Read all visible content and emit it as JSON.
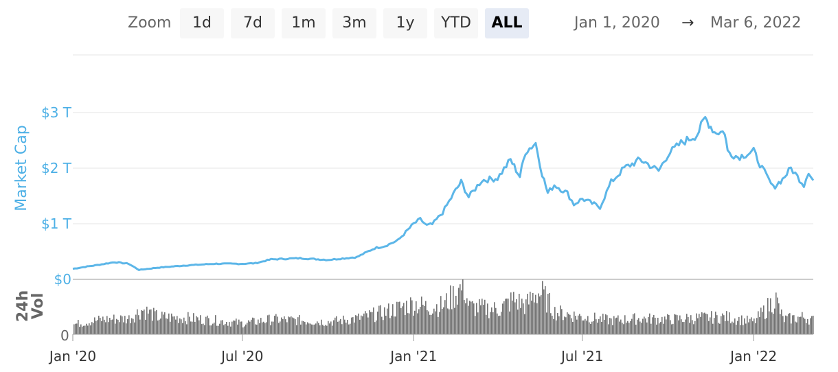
{
  "toolbar": {
    "zoom_label": "Zoom",
    "buttons": [
      "1d",
      "7d",
      "1m",
      "3m",
      "1y",
      "YTD",
      "ALL"
    ],
    "active_button": "ALL",
    "range_from": "Jan 1, 2020",
    "range_arrow": "→",
    "range_to": "Mar 6, 2022"
  },
  "colors": {
    "line": "#5cb6e8",
    "volume": "#737373",
    "grid": "#e6e6e6",
    "axis_label": "#4db0e6"
  },
  "chart_data": [
    {
      "type": "line",
      "ylabel": "Market Cap",
      "yticks": [
        "$0",
        "$1 T",
        "$2 T",
        "$3 T"
      ],
      "ylim": [
        0,
        3.25
      ],
      "grid": true,
      "unit": "trillion USD",
      "x": [
        "2020-01-01",
        "2020-02-01",
        "2020-02-15",
        "2020-03-01",
        "2020-03-12",
        "2020-04-01",
        "2020-05-01",
        "2020-06-01",
        "2020-07-01",
        "2020-07-15",
        "2020-08-01",
        "2020-09-01",
        "2020-10-01",
        "2020-11-01",
        "2020-11-20",
        "2020-12-01",
        "2020-12-15",
        "2021-01-01",
        "2021-01-08",
        "2021-01-15",
        "2021-01-21",
        "2021-02-01",
        "2021-02-15",
        "2021-02-21",
        "2021-03-01",
        "2021-03-15",
        "2021-04-01",
        "2021-04-15",
        "2021-04-25",
        "2021-05-01",
        "2021-05-12",
        "2021-05-19",
        "2021-05-25",
        "2021-06-01",
        "2021-06-15",
        "2021-06-22",
        "2021-07-01",
        "2021-07-20",
        "2021-08-01",
        "2021-08-15",
        "2021-09-01",
        "2021-09-07",
        "2021-09-21",
        "2021-10-01",
        "2021-10-15",
        "2021-11-01",
        "2021-11-10",
        "2021-11-20",
        "2021-12-01",
        "2021-12-04",
        "2021-12-15",
        "2022-01-01",
        "2022-01-10",
        "2022-01-22",
        "2022-02-01",
        "2022-02-10",
        "2022-02-24",
        "2022-03-01",
        "2022-03-06"
      ],
      "series": [
        {
          "values": [
            0.19,
            0.27,
            0.31,
            0.28,
            0.17,
            0.21,
            0.25,
            0.28,
            0.28,
            0.29,
            0.36,
            0.38,
            0.35,
            0.4,
            0.56,
            0.6,
            0.7,
            1.0,
            1.08,
            0.97,
            0.99,
            1.2,
            1.6,
            1.75,
            1.48,
            1.78,
            1.82,
            2.15,
            1.85,
            2.3,
            2.45,
            1.9,
            1.55,
            1.7,
            1.55,
            1.35,
            1.45,
            1.3,
            1.75,
            2.0,
            2.15,
            2.1,
            1.95,
            2.25,
            2.45,
            2.6,
            2.9,
            2.65,
            2.65,
            2.3,
            2.2,
            2.3,
            2.0,
            1.65,
            1.8,
            2.0,
            1.7,
            1.95,
            1.78
          ]
        }
      ]
    },
    {
      "type": "bar",
      "ylabel": "24h Vol",
      "yticks": [
        "0"
      ],
      "xticks": [
        "Jan '20",
        "Jul '20",
        "Jan '21",
        "Jul '21",
        "Jan '22"
      ],
      "x": [
        "2020-01-01",
        "2020-02-01",
        "2020-03-01",
        "2020-03-15",
        "2020-04-01",
        "2020-05-01",
        "2020-06-01",
        "2020-07-01",
        "2020-08-01",
        "2020-09-01",
        "2020-10-01",
        "2020-11-01",
        "2020-12-01",
        "2021-01-01",
        "2021-01-15",
        "2021-02-01",
        "2021-02-23",
        "2021-03-01",
        "2021-04-01",
        "2021-04-18",
        "2021-05-01",
        "2021-05-12",
        "2021-05-19",
        "2021-06-01",
        "2021-07-01",
        "2021-08-01",
        "2021-09-01",
        "2021-10-01",
        "2021-11-01",
        "2021-12-01",
        "2022-01-01",
        "2022-01-24",
        "2022-02-01",
        "2022-02-24",
        "2022-03-06"
      ],
      "values": [
        0.2,
        0.3,
        0.32,
        0.5,
        0.35,
        0.33,
        0.28,
        0.22,
        0.3,
        0.28,
        0.25,
        0.32,
        0.45,
        0.62,
        0.55,
        0.58,
        0.98,
        0.55,
        0.5,
        0.7,
        0.58,
        0.85,
        0.8,
        0.45,
        0.35,
        0.28,
        0.32,
        0.3,
        0.33,
        0.35,
        0.25,
        0.72,
        0.3,
        0.35,
        0.28
      ]
    }
  ]
}
